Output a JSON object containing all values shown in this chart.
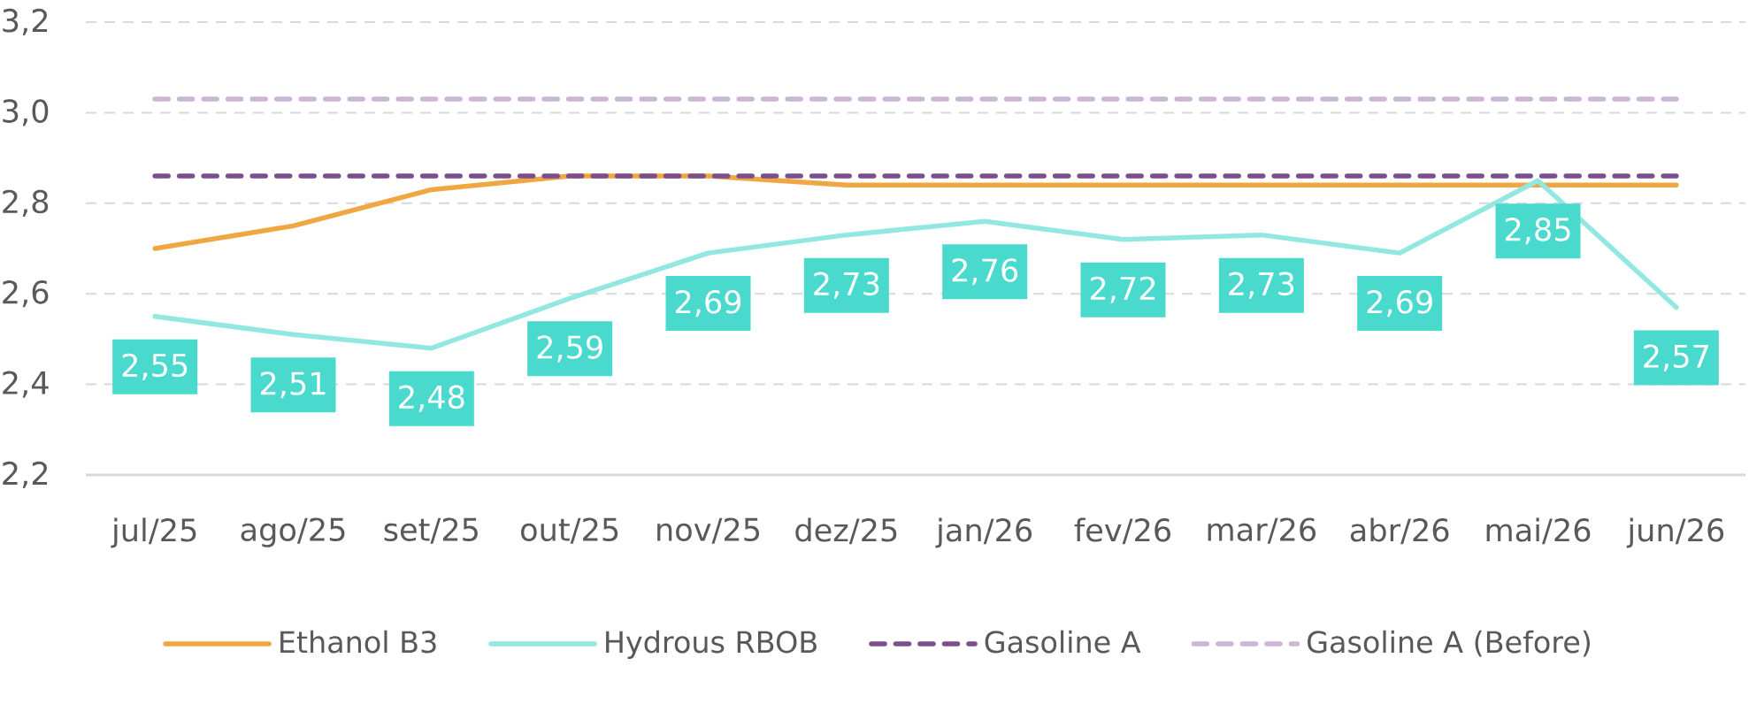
{
  "chart_data": {
    "type": "line",
    "categories": [
      "jul/25",
      "ago/25",
      "set/25",
      "out/25",
      "nov/25",
      "dez/25",
      "jan/26",
      "fev/26",
      "mar/26",
      "abr/26",
      "mai/26",
      "jun/26"
    ],
    "series": [
      {
        "name": "Ethanol B3",
        "color": "#f0a742",
        "values": [
          2.7,
          2.75,
          2.83,
          2.86,
          2.86,
          2.84,
          2.84,
          2.84,
          2.84,
          2.84,
          2.84,
          2.84
        ]
      },
      {
        "name": "Hydrous RBOB",
        "color": "#92e8e1",
        "values": [
          2.55,
          2.51,
          2.48,
          2.59,
          2.69,
          2.73,
          2.76,
          2.72,
          2.73,
          2.69,
          2.85,
          2.57
        ],
        "value_labels": [
          "2,55",
          "2,51",
          "2,48",
          "2,59",
          "2,69",
          "2,73",
          "2,76",
          "2,72",
          "2,73",
          "2,69",
          "2,85",
          "2,57"
        ]
      },
      {
        "name": "Gasoline A",
        "color": "#7b4f8e",
        "line_style": "dashed",
        "values": [
          2.86,
          2.86,
          2.86,
          2.86,
          2.86,
          2.86,
          2.86,
          2.86,
          2.86,
          2.86,
          2.86,
          2.86
        ]
      },
      {
        "name": "Gasoline A (Before)",
        "color": "#cbb6d6",
        "line_style": "dashed",
        "values": [
          3.03,
          3.03,
          3.03,
          3.03,
          3.03,
          3.03,
          3.03,
          3.03,
          3.03,
          3.03,
          3.03,
          3.03
        ]
      }
    ],
    "ylim": [
      2.2,
      3.2
    ],
    "yticks": [
      {
        "value": 2.2,
        "label": "2,2"
      },
      {
        "value": 2.4,
        "label": "2,4"
      },
      {
        "value": 2.6,
        "label": "2,6"
      },
      {
        "value": 2.8,
        "label": "2,8"
      },
      {
        "value": 3.0,
        "label": "3,0"
      },
      {
        "value": 3.2,
        "label": "3,2"
      }
    ],
    "grid": "y",
    "legend": "bottom",
    "line_style": "solid"
  }
}
